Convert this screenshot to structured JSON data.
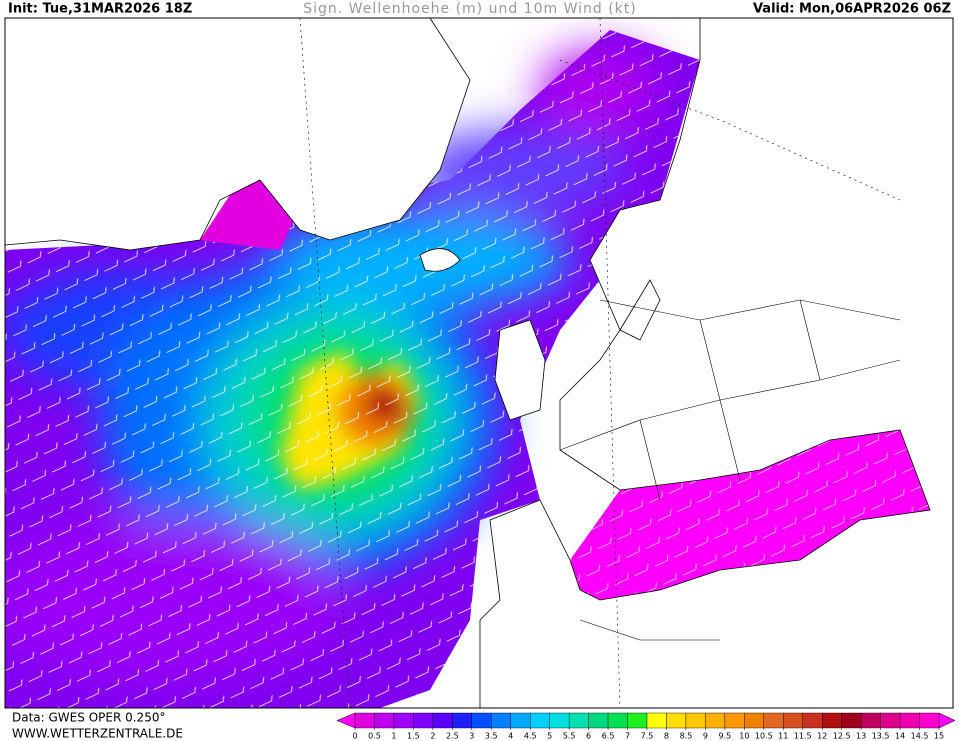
{
  "header": {
    "init": "Init: Tue,31MAR2026 18Z",
    "title": "Sign. Wellenhoehe (m) und 10m Wind (kt)",
    "valid": "Valid: Mon,06APR2026 06Z"
  },
  "footer": {
    "source": "Data: GWES OPER 0.250°",
    "website": "WWW.WETTERZENTRALE.DE"
  },
  "colorbar": {
    "ticks": [
      0,
      0.5,
      1,
      1.5,
      2,
      2.5,
      3,
      3.5,
      4,
      4.5,
      5,
      5.5,
      6,
      6.5,
      7,
      7.5,
      8,
      8.5,
      9,
      9.5,
      10,
      10.5,
      11,
      11.5,
      12,
      12.5,
      13,
      13.5,
      14,
      14.5,
      15
    ],
    "colors": [
      "#e000e0",
      "#c000f0",
      "#a000ff",
      "#8000ff",
      "#5a00ff",
      "#2020ff",
      "#0050ff",
      "#0080ff",
      "#00a8ff",
      "#00d0ff",
      "#00e0e0",
      "#00e0b0",
      "#00d880",
      "#00e050",
      "#20f020",
      "#ffff00",
      "#ffe000",
      "#ffc800",
      "#ffb000",
      "#ff9800",
      "#f08000",
      "#e06820",
      "#d85020",
      "#c83020",
      "#b01010",
      "#a00020",
      "#c00060",
      "#e00090",
      "#f000b0",
      "#ff00d0"
    ],
    "under_color": "#ff00ff",
    "over_color": "#ff00ff"
  }
}
